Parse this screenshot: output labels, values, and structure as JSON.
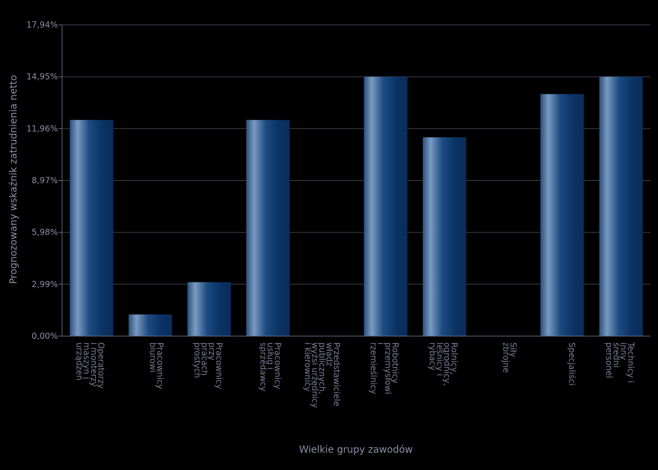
{
  "chart_data": {
    "type": "bar",
    "title": "",
    "xlabel": "Wielkie grupy zawodów",
    "ylabel": "Prognozowany wskaźnik zatrudnienia netto",
    "ylim": [
      0,
      17.94
    ],
    "yticks": [
      "0,00%",
      "2,99%",
      "5,98%",
      "8,97%",
      "11,96%",
      "14,95%",
      "17,94%"
    ],
    "grid": true,
    "categories": [
      [
        "Operatorzy",
        "i monterzy",
        "maszyn i",
        "urządzeń"
      ],
      [
        "Pracownicy",
        "biurowi"
      ],
      [
        "Pracownicy",
        "przy",
        "pracach",
        "prostych"
      ],
      [
        "Pracownicy",
        "usług i",
        "sprzedawcy"
      ],
      [
        "Przedstawiciele",
        "władz",
        "publicznych,",
        "wyżsi urzędnicy",
        "i kierownicy"
      ],
      [
        "Robotnicy",
        "przemysłowi",
        "i",
        "rzemieślnicy"
      ],
      [
        "Rolnicy,",
        "ogrodnicy,",
        "leśnicy i",
        "rybacy"
      ],
      [
        "Siły",
        "zbrojne"
      ],
      [
        "Specjaliści"
      ],
      [
        "Technicy i",
        "inny",
        "średni",
        "personel"
      ]
    ],
    "values": [
      12.46,
      1.25,
      3.11,
      12.46,
      0,
      14.95,
      11.46,
      0,
      13.95,
      14.95
    ],
    "colors": {
      "background": "#000000",
      "bar_dark": "#0b3264",
      "bar_light": "#7a9ac0",
      "grid": "#3a3a4a",
      "text": "#8a8fa8",
      "axis": "#6a6f88"
    }
  }
}
